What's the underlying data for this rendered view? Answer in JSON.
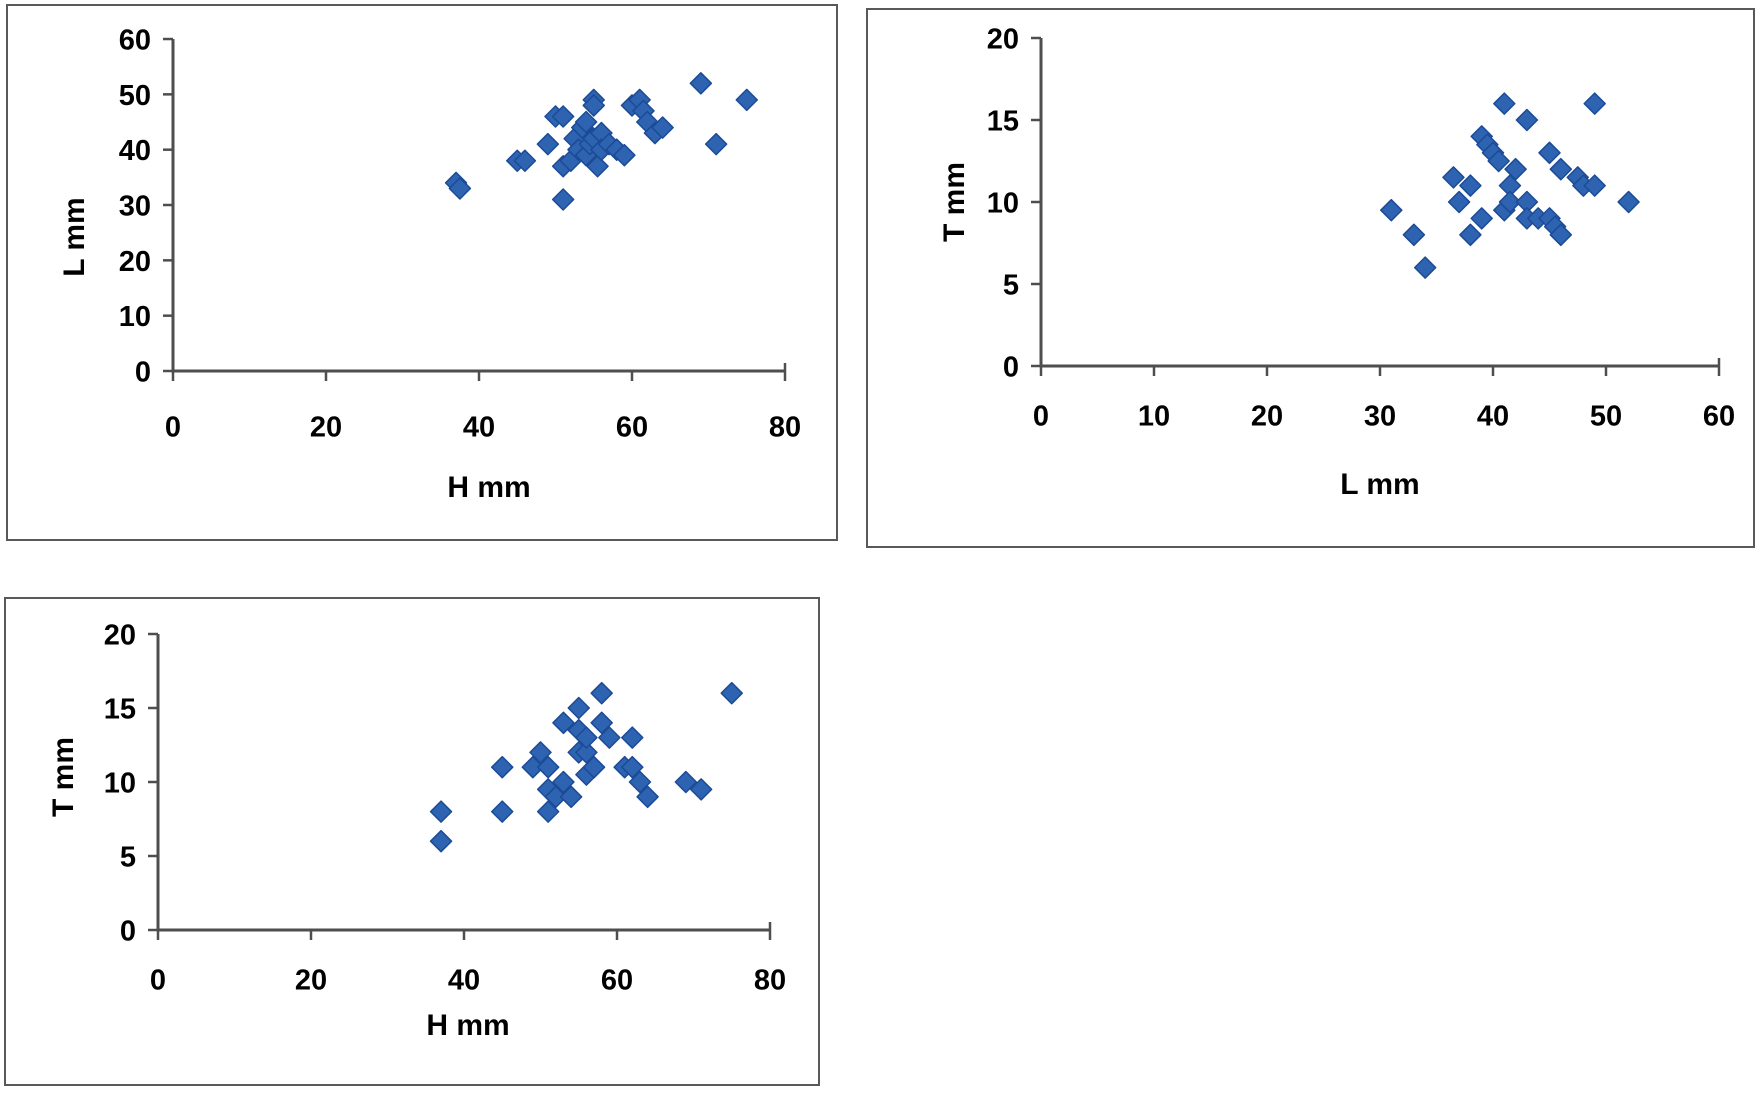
{
  "page": {
    "background": "#ffffff",
    "panel_border_color": "#595959",
    "axis_color": "#4e4e4e",
    "text_color": "#000000"
  },
  "chart_data": [
    {
      "id": "scatter-L-vs-H",
      "type": "scatter",
      "marker": "diamond",
      "marker_fill": "#2d63b1",
      "marker_stroke": "#1c4b96",
      "xlabel": "H mm",
      "ylabel": "L mm",
      "xlim": [
        0,
        80
      ],
      "ylim": [
        0,
        60
      ],
      "xticks": [
        0,
        20,
        40,
        60,
        80
      ],
      "yticks": [
        0,
        10,
        20,
        30,
        40,
        50,
        60
      ],
      "grid": false,
      "legend": false,
      "x": [
        37,
        37.5,
        45,
        46,
        49,
        50,
        51,
        51,
        51,
        52,
        52.5,
        53,
        53.5,
        54,
        54,
        54.5,
        55,
        55,
        55,
        55.5,
        56,
        56,
        57,
        58,
        59,
        60,
        61,
        61.5,
        62,
        63,
        64,
        69,
        71,
        75
      ],
      "y": [
        34,
        33,
        38,
        38,
        41,
        46,
        46,
        31,
        37,
        38,
        42,
        40,
        44,
        45,
        39,
        41,
        49,
        48,
        42,
        37,
        43,
        40,
        41,
        40,
        39,
        48,
        49,
        47,
        45,
        43,
        44,
        52,
        41,
        49
      ]
    },
    {
      "id": "scatter-T-vs-L",
      "type": "scatter",
      "marker": "diamond",
      "marker_fill": "#2d63b1",
      "marker_stroke": "#1c4b96",
      "xlabel": "L mm",
      "ylabel": "T mm",
      "xlim": [
        0,
        60
      ],
      "ylim": [
        0,
        20
      ],
      "xticks": [
        0,
        10,
        20,
        30,
        40,
        50,
        60
      ],
      "yticks": [
        0,
        5,
        10,
        15,
        20
      ],
      "grid": false,
      "legend": false,
      "x": [
        31,
        33,
        34,
        36.5,
        37,
        38,
        38,
        39,
        39,
        39.5,
        40,
        40.5,
        41,
        41,
        41.5,
        41.5,
        42,
        43,
        43,
        43,
        44,
        45,
        45,
        45.5,
        46,
        46,
        47.5,
        48,
        49,
        49,
        52
      ],
      "y": [
        9.5,
        8,
        6,
        11.5,
        10,
        8,
        11,
        9,
        14,
        13.5,
        13,
        12.5,
        16,
        9.5,
        11,
        10,
        12,
        15,
        10,
        9,
        9,
        13,
        9,
        8.5,
        8,
        12,
        11.5,
        11,
        16,
        11,
        10
      ]
    },
    {
      "id": "scatter-T-vs-H",
      "type": "scatter",
      "marker": "diamond",
      "marker_fill": "#2d63b1",
      "marker_stroke": "#1c4b96",
      "xlabel": "H mm",
      "ylabel": "T mm",
      "xlim": [
        0,
        80
      ],
      "ylim": [
        0,
        20
      ],
      "xticks": [
        0,
        20,
        40,
        60,
        80
      ],
      "yticks": [
        0,
        5,
        10,
        15,
        20
      ],
      "grid": false,
      "legend": false,
      "x": [
        37,
        37,
        45,
        45,
        49,
        50,
        51,
        51,
        51,
        52,
        53,
        53,
        54,
        55,
        55,
        55,
        56,
        56,
        56,
        57,
        58,
        58,
        59,
        61,
        62,
        62,
        63,
        64,
        69,
        71,
        75
      ],
      "y": [
        8,
        6,
        8,
        11,
        11,
        12,
        11,
        8,
        9.5,
        9,
        14,
        10,
        9,
        15,
        13.5,
        12,
        12,
        13,
        10.5,
        11,
        16,
        14,
        13,
        11,
        13,
        11,
        10,
        9,
        10,
        9.5,
        16
      ]
    }
  ]
}
